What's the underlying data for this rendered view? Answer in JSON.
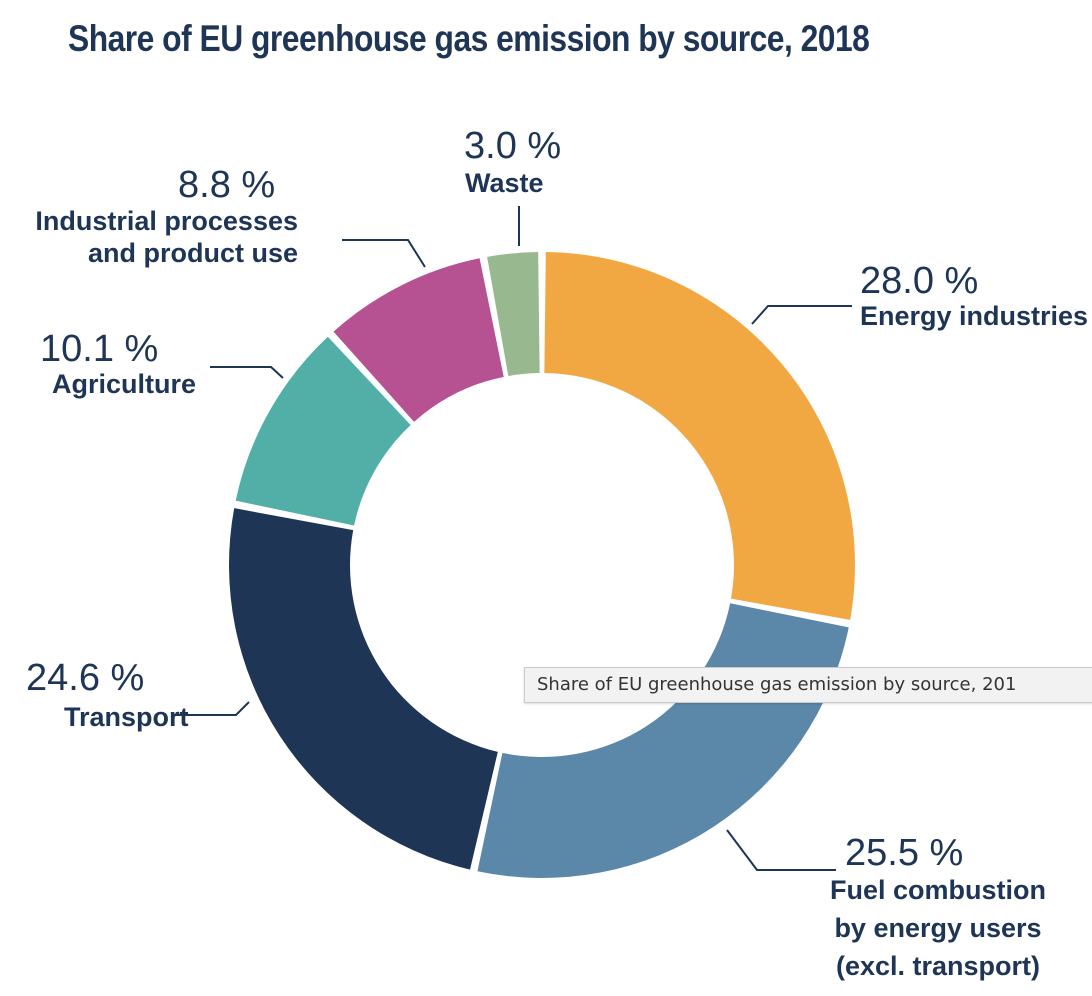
{
  "chart_data": {
    "type": "pie",
    "variant": "donut",
    "title": "Share of EU greenhouse gas emission by source, 2018",
    "unit": "%",
    "categories": [
      "Energy industries",
      "Fuel combustion by energy users (excl. transport)",
      "Transport",
      "Agriculture",
      "Industrial processes and product use",
      "Waste"
    ],
    "values": [
      28.0,
      25.5,
      24.6,
      10.1,
      8.8,
      3.0
    ],
    "value_labels": [
      "28.0 %",
      "25.5 %",
      "24.6 %",
      "10.1 %",
      "8.8 %",
      "3.0 %"
    ],
    "label_lines": [
      [
        "Energy industries"
      ],
      [
        "Fuel combustion",
        "by energy users",
        "(excl. transport)"
      ],
      [
        "Transport"
      ],
      [
        "Agriculture"
      ],
      [
        "Industrial processes",
        "and product use"
      ],
      [
        "Waste"
      ]
    ],
    "colors": [
      "#f1a843",
      "#5b87a8",
      "#1e3556",
      "#52afa8",
      "#b65292",
      "#98b990"
    ],
    "start_angle_deg": 0,
    "direction": "clockwise",
    "legend": "none"
  },
  "tooltip": {
    "text": "Share of EU greenhouse gas emission by source, 201"
  }
}
